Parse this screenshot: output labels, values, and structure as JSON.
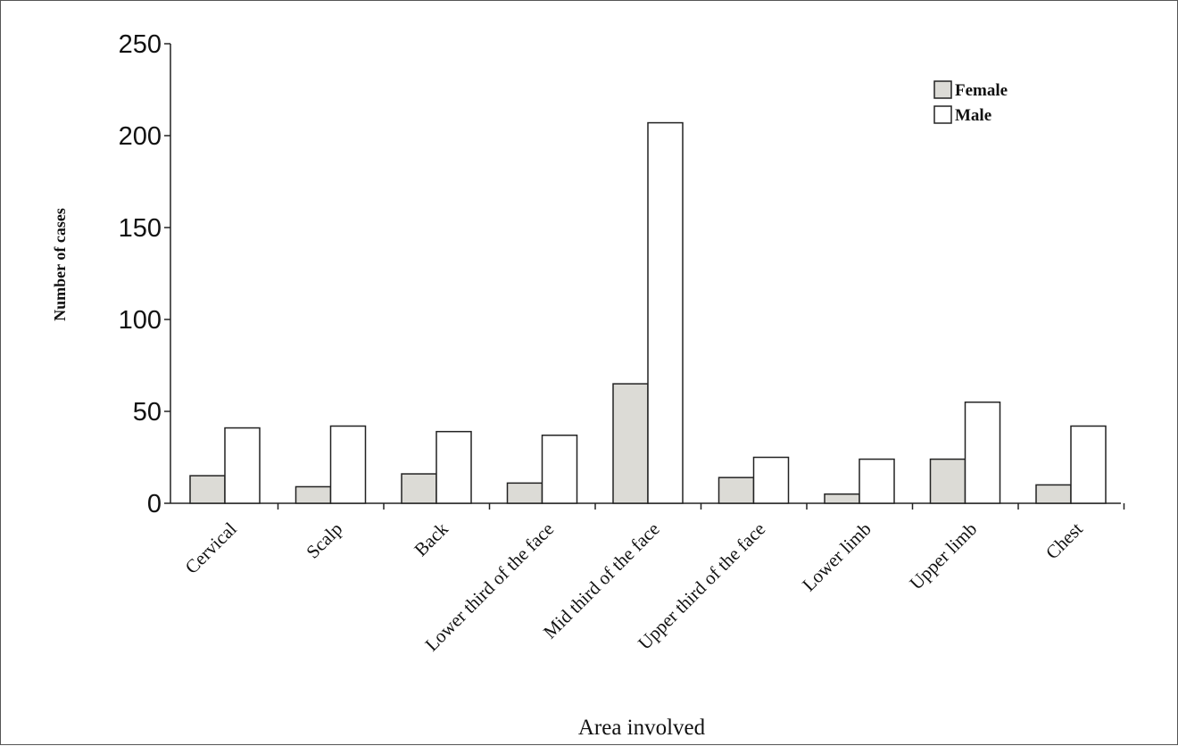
{
  "chart_data": {
    "type": "bar",
    "title": "",
    "xlabel": "Area involved",
    "ylabel": "Number of cases",
    "ylim": [
      0,
      250
    ],
    "yticks": [
      0,
      50,
      100,
      150,
      200,
      250
    ],
    "categories": [
      "Cervical",
      "Scalp",
      "Back",
      "Lower third of the face",
      "Mid third of the face",
      "Upper third of the face",
      "Lower limb",
      "Upper limb",
      "Chest"
    ],
    "series": [
      {
        "name": "Female",
        "color": "#dcdbd6",
        "values": [
          15,
          9,
          16,
          11,
          65,
          14,
          5,
          24,
          10
        ]
      },
      {
        "name": "Male",
        "color": "#ffffff",
        "values": [
          41,
          42,
          39,
          37,
          207,
          25,
          24,
          55,
          42
        ]
      }
    ],
    "grid": false,
    "legend": "top-right"
  }
}
